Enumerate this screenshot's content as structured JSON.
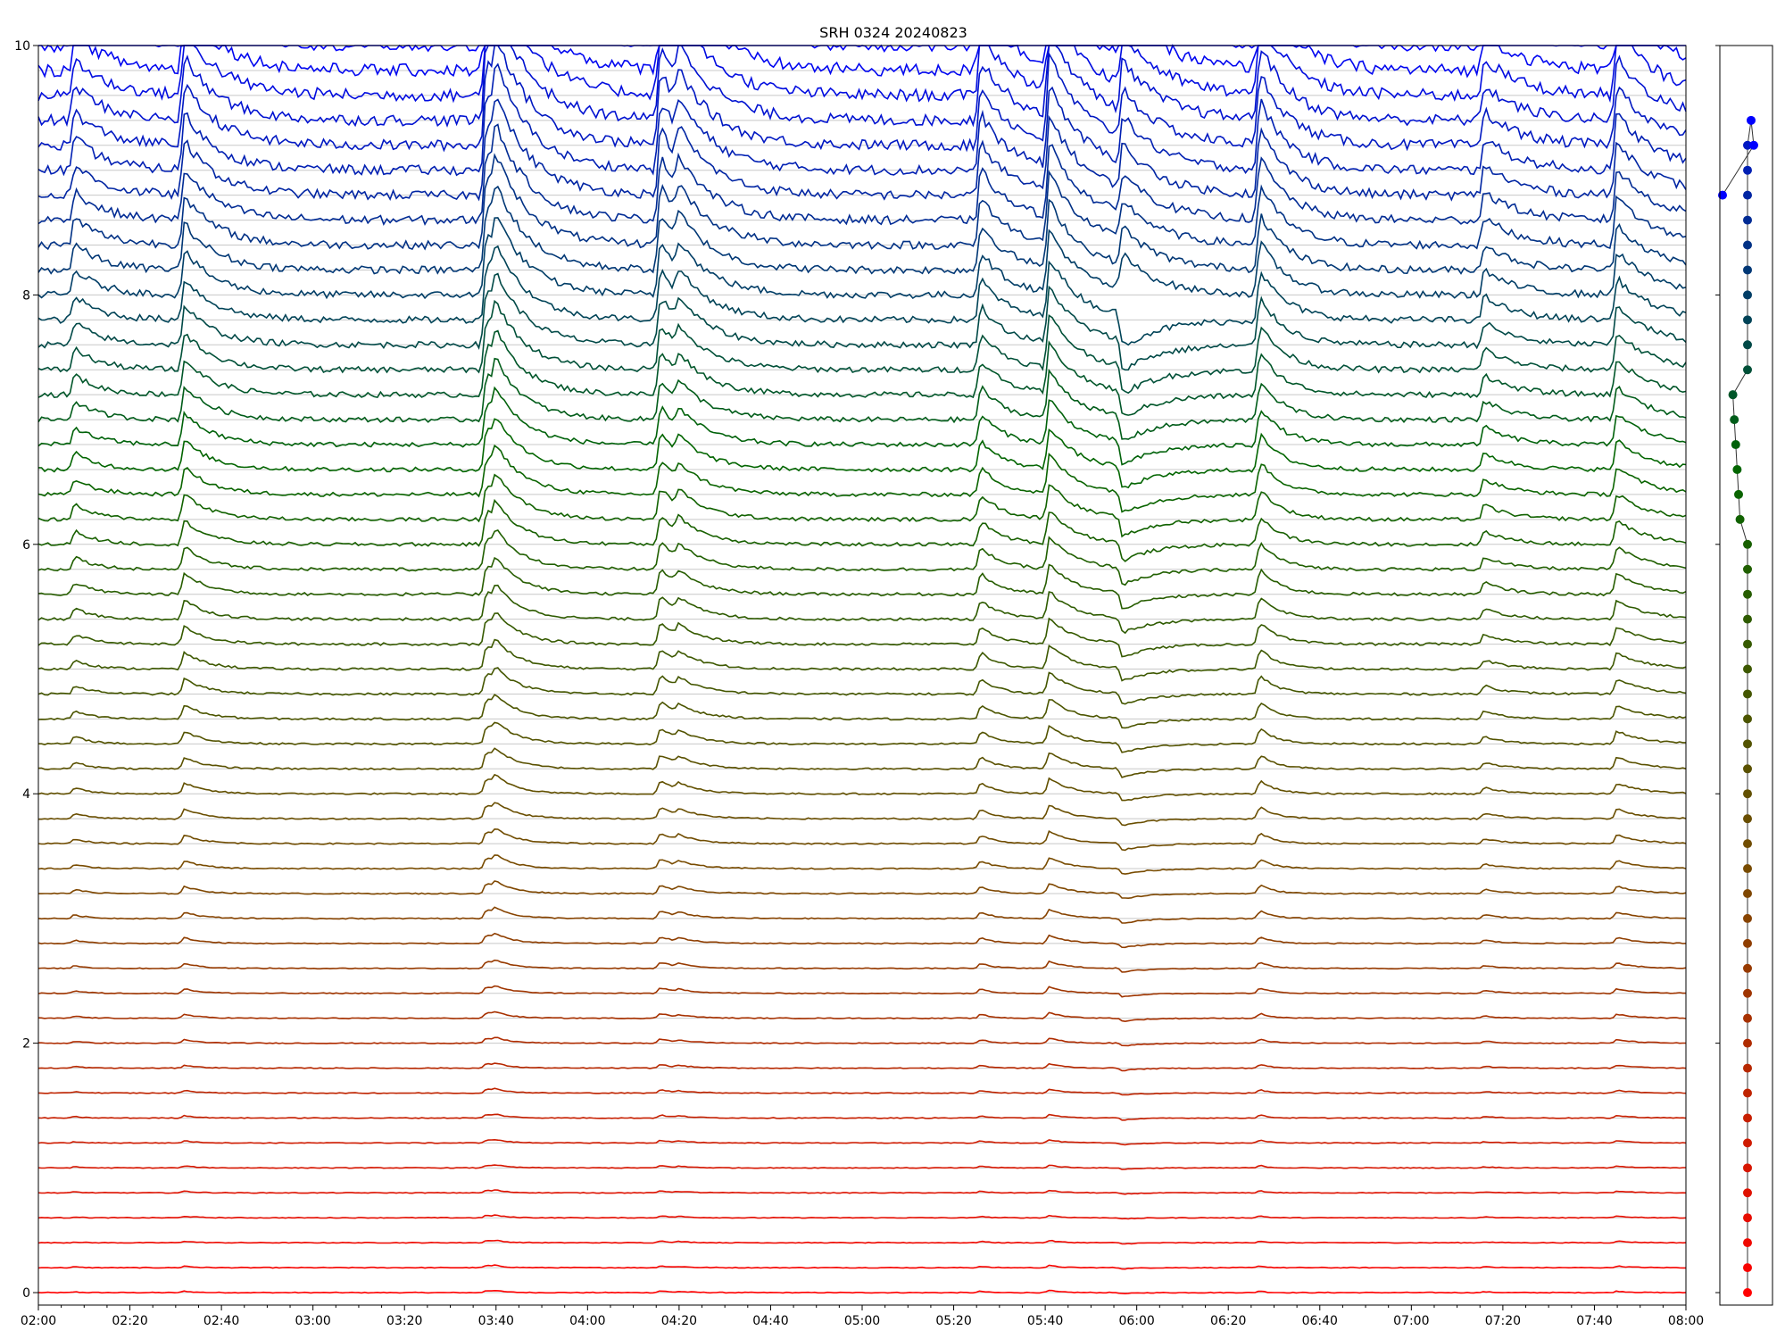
{
  "chart_data": [
    {
      "type": "line",
      "title": "SRH 0324 20240823",
      "xlabel": "",
      "ylabel": "",
      "x_range": [
        "02:00",
        "08:00"
      ],
      "ylim": [
        -0.1,
        10
      ],
      "x_ticks": [
        "02:00",
        "02:20",
        "02:40",
        "03:00",
        "03:20",
        "03:40",
        "04:00",
        "04:20",
        "04:40",
        "05:00",
        "05:20",
        "05:40",
        "06:00",
        "06:20",
        "06:40",
        "07:00",
        "07:20",
        "07:40",
        "08:00"
      ],
      "y_ticks": [
        "0",
        "2",
        "4",
        "6",
        "8",
        "10"
      ],
      "y_tick_values": [
        0,
        2,
        4,
        6,
        8,
        10
      ],
      "grid": "horizontal",
      "series_count": 51,
      "series_baseline_spacing": 0.2,
      "series_color_gradient": [
        "#ff0000",
        "#7a4a00",
        "#006600",
        "#0000ff"
      ],
      "events": [
        {
          "time": "02:08",
          "label": ""
        },
        {
          "time": "02:32",
          "label": ""
        },
        {
          "time": "03:38",
          "label": ""
        },
        {
          "time": "03:40",
          "label": ""
        },
        {
          "time": "04:16",
          "label": ""
        },
        {
          "time": "04:20",
          "label": ""
        },
        {
          "time": "05:26",
          "label": ""
        },
        {
          "time": "05:41",
          "label": ""
        },
        {
          "time": "05:57",
          "label": ""
        },
        {
          "time": "06:27",
          "label": ""
        },
        {
          "time": "07:16",
          "label": ""
        },
        {
          "time": "07:45",
          "label": ""
        }
      ]
    },
    {
      "type": "scatter",
      "title": "",
      "markers": "filled circles connected by thin line",
      "point_count": 47,
      "ylim": [
        -0.1,
        10
      ]
    }
  ]
}
